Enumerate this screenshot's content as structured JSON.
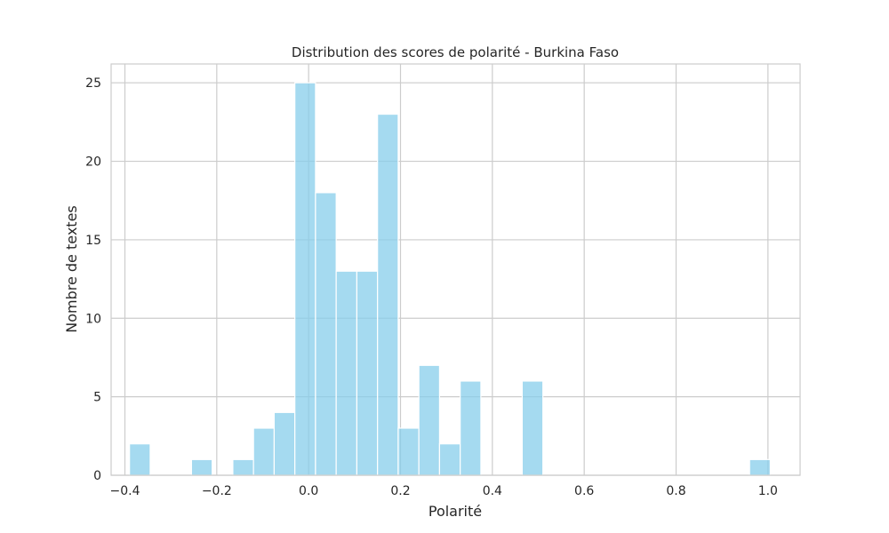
{
  "chart_data": {
    "type": "bar",
    "subtype": "histogram",
    "title": "Distribution des scores de polarité - Burkina Faso",
    "xlabel": "Polarité",
    "ylabel": "Nombre de textes",
    "xlim": [
      -0.43,
      1.07
    ],
    "ylim": [
      0,
      26.2
    ],
    "grid": true,
    "legend": null,
    "color": "#87ceeb",
    "x_ticks": [
      -0.4,
      -0.2,
      0.0,
      0.2,
      0.4,
      0.6,
      0.8,
      1.0
    ],
    "x_tick_labels": [
      "−0.4",
      "−0.2",
      "0.0",
      "0.2",
      "0.4",
      "0.6",
      "0.8",
      "1.0"
    ],
    "y_ticks": [
      0,
      5,
      10,
      15,
      20,
      25
    ],
    "y_tick_labels": [
      "0",
      "5",
      "10",
      "15",
      "20",
      "25"
    ],
    "bins": [
      {
        "x0": -0.39,
        "x1": -0.345,
        "count": 2
      },
      {
        "x0": -0.345,
        "x1": -0.3,
        "count": 0
      },
      {
        "x0": -0.3,
        "x1": -0.255,
        "count": 0
      },
      {
        "x0": -0.255,
        "x1": -0.21,
        "count": 1
      },
      {
        "x0": -0.21,
        "x1": -0.165,
        "count": 0
      },
      {
        "x0": -0.165,
        "x1": -0.12,
        "count": 1
      },
      {
        "x0": -0.12,
        "x1": -0.075,
        "count": 3
      },
      {
        "x0": -0.075,
        "x1": -0.03,
        "count": 4
      },
      {
        "x0": -0.03,
        "x1": 0.015,
        "count": 25
      },
      {
        "x0": 0.015,
        "x1": 0.06,
        "count": 18
      },
      {
        "x0": 0.06,
        "x1": 0.105,
        "count": 13
      },
      {
        "x0": 0.105,
        "x1": 0.15,
        "count": 13
      },
      {
        "x0": 0.15,
        "x1": 0.195,
        "count": 23
      },
      {
        "x0": 0.195,
        "x1": 0.24,
        "count": 3
      },
      {
        "x0": 0.24,
        "x1": 0.285,
        "count": 7
      },
      {
        "x0": 0.285,
        "x1": 0.33,
        "count": 2
      },
      {
        "x0": 0.33,
        "x1": 0.375,
        "count": 6
      },
      {
        "x0": 0.375,
        "x1": 0.42,
        "count": 0
      },
      {
        "x0": 0.42,
        "x1": 0.465,
        "count": 0
      },
      {
        "x0": 0.465,
        "x1": 0.51,
        "count": 6
      },
      {
        "x0": 0.51,
        "x1": 0.555,
        "count": 0
      },
      {
        "x0": 0.555,
        "x1": 0.6,
        "count": 0
      },
      {
        "x0": 0.6,
        "x1": 0.645,
        "count": 0
      },
      {
        "x0": 0.645,
        "x1": 0.69,
        "count": 0
      },
      {
        "x0": 0.69,
        "x1": 0.735,
        "count": 0
      },
      {
        "x0": 0.735,
        "x1": 0.78,
        "count": 0
      },
      {
        "x0": 0.78,
        "x1": 0.825,
        "count": 0
      },
      {
        "x0": 0.825,
        "x1": 0.87,
        "count": 0
      },
      {
        "x0": 0.87,
        "x1": 0.915,
        "count": 0
      },
      {
        "x0": 0.915,
        "x1": 0.96,
        "count": 0
      },
      {
        "x0": 0.96,
        "x1": 1.005,
        "count": 1
      }
    ]
  }
}
